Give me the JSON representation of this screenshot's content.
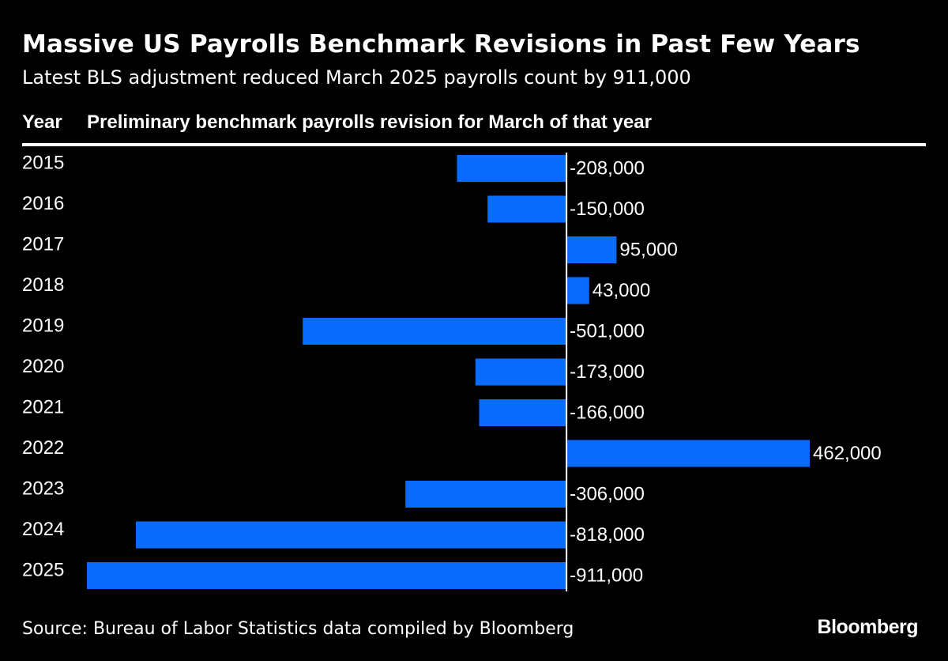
{
  "chart_data": {
    "type": "bar",
    "orientation": "horizontal",
    "title": "Massive US Payrolls Benchmark Revisions in Past Few Years",
    "subtitle": "Latest BLS adjustment reduced March 2025 payrolls count by 911,000",
    "column_headers": {
      "category": "Year",
      "value": "Preliminary benchmark payrolls revision for March of that year"
    },
    "categories": [
      "2015",
      "2016",
      "2017",
      "2018",
      "2019",
      "2020",
      "2021",
      "2022",
      "2023",
      "2024",
      "2025"
    ],
    "values": [
      -208000,
      -150000,
      95000,
      43000,
      -501000,
      -173000,
      -166000,
      462000,
      -306000,
      -818000,
      -911000
    ],
    "value_labels": [
      "-208,000",
      "-150,000",
      "95,000",
      "43,000",
      "-501,000",
      "-173,000",
      "-166,000",
      "462,000",
      "-306,000",
      "-818,000",
      "-911,000"
    ],
    "xlim": [
      -911000,
      462000
    ],
    "bar_color": "#0a6cff",
    "zero_line_color": "#ffffff",
    "background": "#000000",
    "grid": false,
    "legend": "none"
  },
  "footer": {
    "source": "Source: Bureau of Labor Statistics data compiled by Bloomberg",
    "brand": "Bloomberg"
  }
}
